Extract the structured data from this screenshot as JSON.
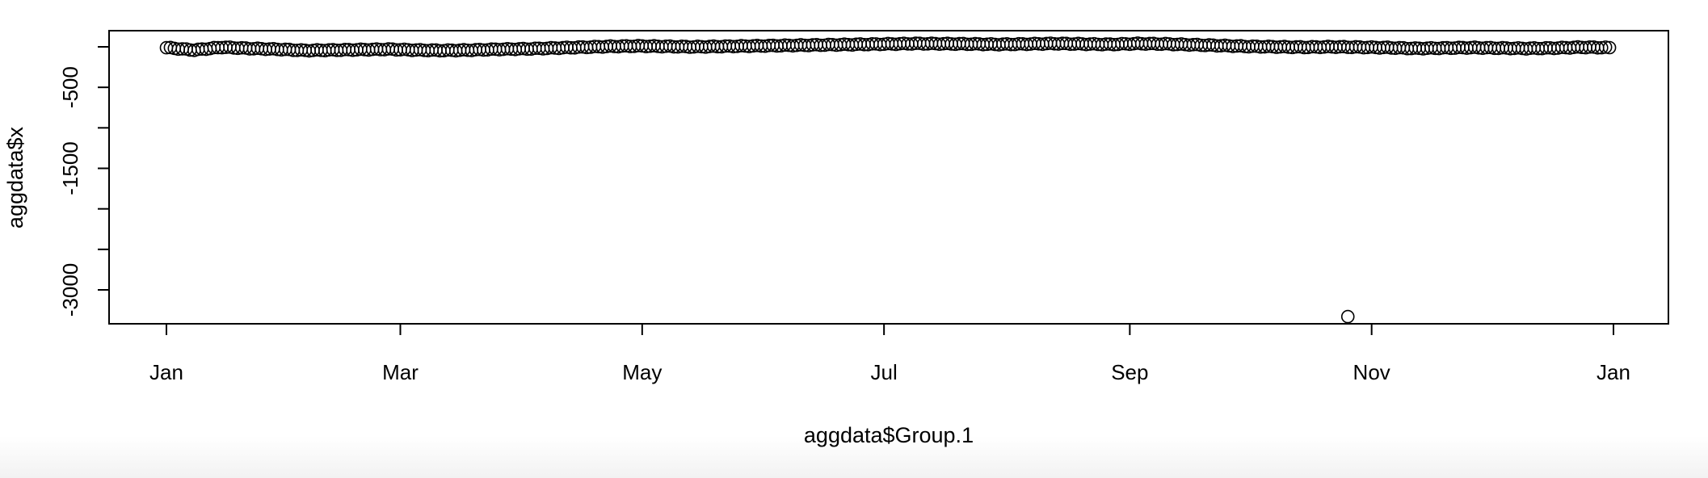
{
  "chart_data": {
    "type": "scatter",
    "title": "",
    "xlabel": "aggdata$Group.1",
    "ylabel": "aggdata$x",
    "x_ticks": [
      {
        "date": "2015-01-01",
        "label": "Jan"
      },
      {
        "date": "2015-03-01",
        "label": "Mar"
      },
      {
        "date": "2015-05-01",
        "label": "May"
      },
      {
        "date": "2015-07-01",
        "label": "Jul"
      },
      {
        "date": "2015-09-01",
        "label": "Sep"
      },
      {
        "date": "2015-11-01",
        "label": "Nov"
      },
      {
        "date": "2016-01-01",
        "label": "Jan"
      }
    ],
    "y_ticks": [
      {
        "value": -500,
        "label": "-500"
      },
      {
        "value": -1500,
        "label": "-1500"
      },
      {
        "value": -3000,
        "label": "-3000"
      }
    ],
    "xlim": [
      "2014-12-24",
      "2016-01-01"
    ],
    "ylim": [
      -3450,
      50
    ],
    "grid": false,
    "legend": "none",
    "marker": "open-circle",
    "point_color": "#000000",
    "series": [
      {
        "x": [
          "2015-01-01",
          "2015-01-08",
          "2015-01-15",
          "2015-01-22",
          "2015-01-29",
          "2015-02-05",
          "2015-02-12",
          "2015-02-19",
          "2015-02-26",
          "2015-03-05",
          "2015-03-12",
          "2015-03-19",
          "2015-03-26",
          "2015-04-02",
          "2015-04-09",
          "2015-04-16",
          "2015-04-23",
          "2015-04-30",
          "2015-05-07",
          "2015-05-14",
          "2015-05-21",
          "2015-05-28",
          "2015-06-04",
          "2015-06-11",
          "2015-06-18",
          "2015-06-25",
          "2015-07-02",
          "2015-07-09",
          "2015-07-16",
          "2015-07-23",
          "2015-07-30",
          "2015-08-06",
          "2015-08-13",
          "2015-08-20",
          "2015-08-27",
          "2015-09-03",
          "2015-09-10",
          "2015-09-17",
          "2015-09-24",
          "2015-10-01",
          "2015-10-08",
          "2015-10-15",
          "2015-10-22",
          "2015-10-29",
          "2015-11-05",
          "2015-11-12",
          "2015-11-19",
          "2015-11-26",
          "2015-12-03",
          "2015-12-10",
          "2015-12-17",
          "2015-12-24",
          "2015-12-31",
          "2015-10-26"
        ],
        "y": [
          -10,
          -40,
          -5,
          -20,
          -30,
          -45,
          -40,
          -35,
          -30,
          -40,
          -45,
          -40,
          -30,
          -25,
          -15,
          -5,
          5,
          10,
          5,
          0,
          5,
          10,
          15,
          20,
          25,
          30,
          35,
          40,
          38,
          35,
          30,
          35,
          40,
          35,
          30,
          40,
          35,
          25,
          15,
          5,
          0,
          -5,
          0,
          -5,
          -10,
          -20,
          -15,
          -10,
          -15,
          -20,
          -15,
          -5,
          -10,
          -3330
        ]
      }
    ]
  }
}
